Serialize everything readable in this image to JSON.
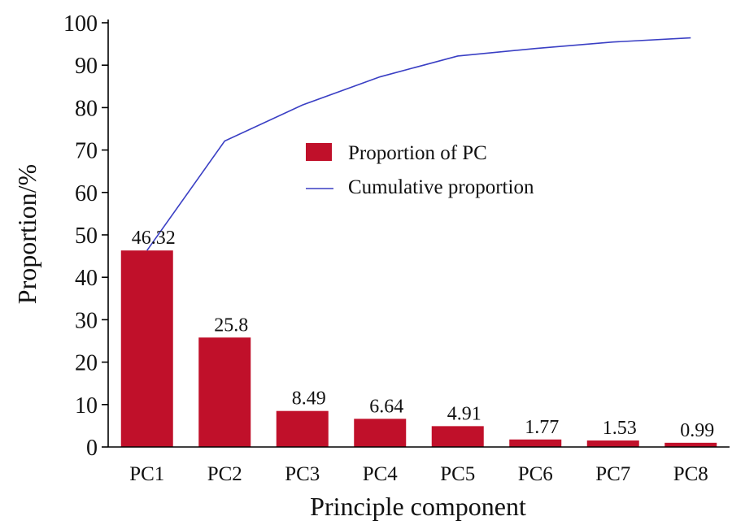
{
  "chart_data": {
    "type": "bar",
    "categories": [
      "PC1",
      "PC2",
      "PC3",
      "PC4",
      "PC5",
      "PC6",
      "PC7",
      "PC8"
    ],
    "series": [
      {
        "name": "Proportion of PC",
        "type": "bar",
        "values": [
          46.32,
          25.8,
          8.49,
          6.64,
          4.91,
          1.77,
          1.53,
          0.99
        ],
        "color": "#c0102a"
      },
      {
        "name": "Cumulative proportion",
        "type": "line",
        "values": [
          46.32,
          72.12,
          80.61,
          87.25,
          92.16,
          93.93,
          95.46,
          96.45
        ],
        "color": "#3a3fc4"
      }
    ],
    "data_labels": [
      "46.32",
      "25.8",
      "8.49",
      "6.64",
      "4.91",
      "1.77",
      "1.53",
      "0.99"
    ],
    "xlabel": "Principle component",
    "ylabel": "Proportion/%",
    "ylim": [
      0,
      100
    ],
    "yticks": [
      0,
      10,
      20,
      30,
      40,
      50,
      60,
      70,
      80,
      90,
      100
    ],
    "grid": false,
    "legend_position": "upper-center"
  }
}
